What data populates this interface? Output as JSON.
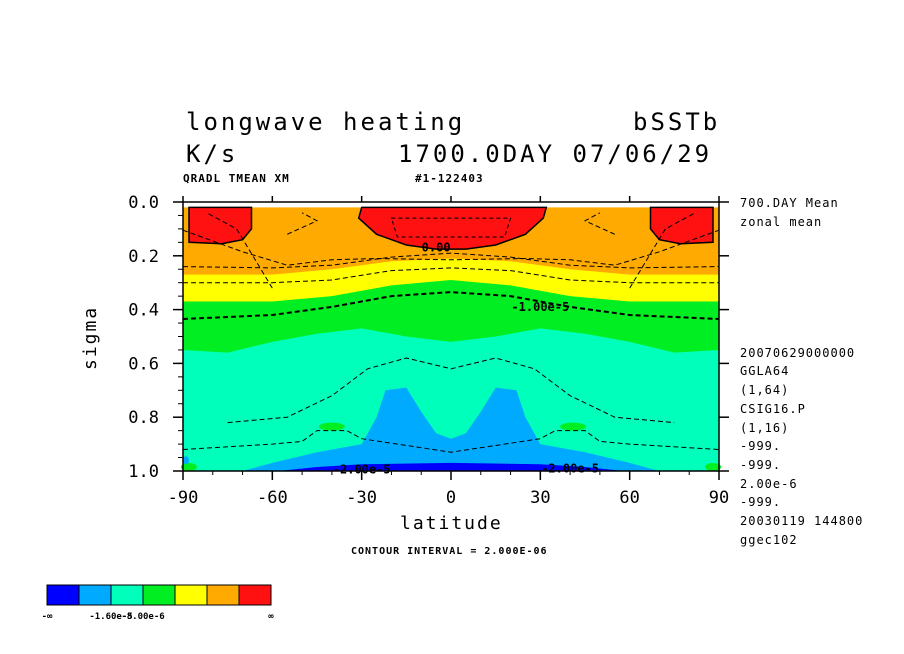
{
  "header": {
    "title": "longwave heating",
    "experiment": "bSSTb",
    "units": "K/s",
    "time": "1700.0DAY 07/06/29",
    "variable": "QRADL TMEAN XM",
    "run_id": "#1-122403"
  },
  "side_info": {
    "mean_label": "700.DAY Mean",
    "mean_type": "zonal mean",
    "lines": [
      "20070629000000",
      "GGLA64",
      "(1,64)",
      "CSIG16.P",
      "(1,16)",
      "-999.",
      "-999.",
      "2.00e-6",
      "-999.",
      "20030119 144800",
      "ggec102"
    ]
  },
  "footer": {
    "contour_interval": "CONTOUR INTERVAL = 2.000E-06"
  },
  "colorbar": {
    "colors": [
      "#0000ff",
      "#00aaff",
      "#00ffbb",
      "#00ee22",
      "#ffff00",
      "#ffaa00",
      "#ff1111"
    ],
    "labels": [
      "-∞",
      "-1.60e-5",
      "-8.00e-6",
      "∞"
    ]
  },
  "chart_data": {
    "type": "heatmap",
    "title": "longwave heating",
    "xlabel": "latitude",
    "ylabel": "sigma",
    "xlim": [
      -90,
      90
    ],
    "ylim": [
      0.0,
      1.0
    ],
    "y_inverted": true,
    "x_ticks": [
      -90,
      -60,
      -30,
      0,
      30,
      60,
      90
    ],
    "x_tick_labels": [
      "-90",
      "-60",
      "-30",
      "0",
      "30",
      "60",
      "90"
    ],
    "y_ticks": [
      0.0,
      0.2,
      0.4,
      0.6,
      0.8,
      1.0
    ],
    "y_tick_labels": [
      "0.0",
      "0.2",
      "0.4",
      "0.6",
      "0.8",
      "1.0"
    ],
    "contour_labels": [
      {
        "text": "0.00",
        "x": -5,
        "y": 0.17
      },
      {
        "text": "-1.00e-5",
        "x": 30,
        "y": 0.39
      },
      {
        "text": "-2.00e-5",
        "x": 40,
        "y": 0.99
      },
      {
        "text": "-2.00e-5",
        "x": -30,
        "y": 0.995
      }
    ],
    "bands": [
      {
        "name": "red",
        "color": "#ff1111",
        "upper": [
          [
            -90,
            0.02
          ],
          [
            90,
            0.02
          ]
        ],
        "lower": [
          [
            -90,
            0.02
          ],
          [
            90,
            0.02
          ]
        ]
      }
    ]
  }
}
